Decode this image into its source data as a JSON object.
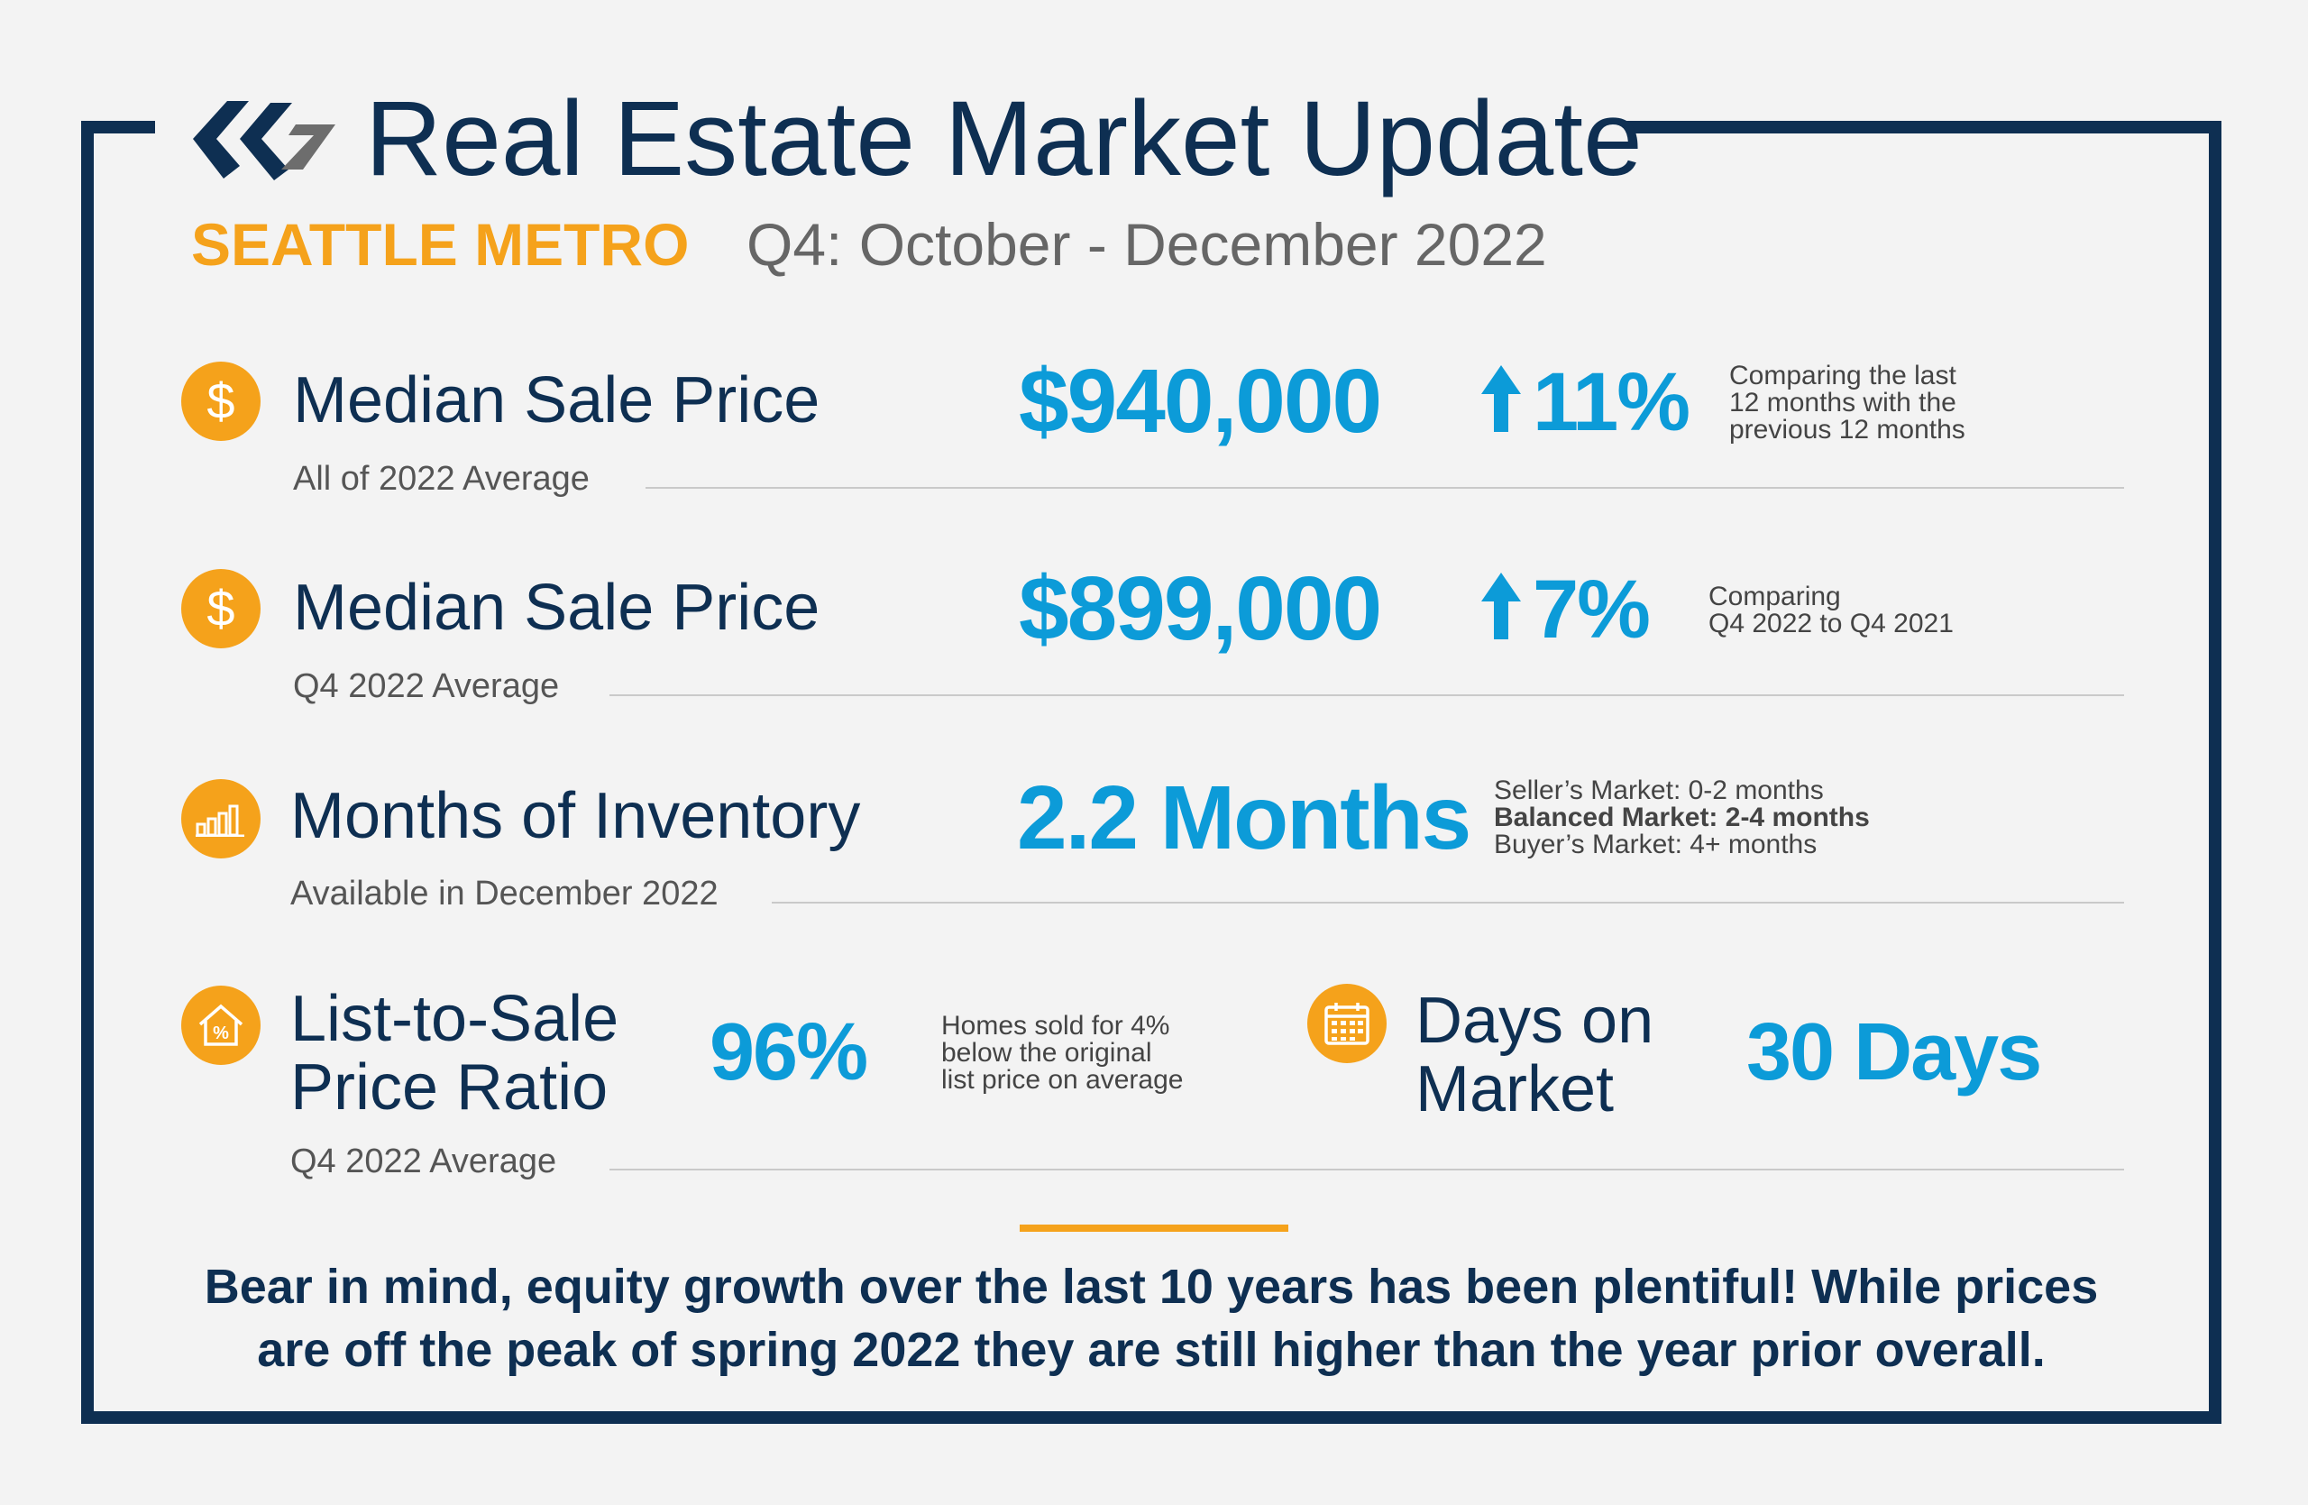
{
  "header": {
    "title": "Real Estate Market Update",
    "region": "SEATTLE METRO",
    "period": "Q4: October - December 2022"
  },
  "metrics": {
    "median_annual": {
      "label": "Median Sale Price",
      "sub": "All of 2022 Average",
      "value": "$940,000",
      "change": "11%",
      "note": [
        "Comparing the last",
        "12 months with the",
        "previous 12 months"
      ]
    },
    "median_q4": {
      "label": "Median Sale Price",
      "sub": "Q4 2022 Average",
      "value": "$899,000",
      "change": "7%",
      "note": [
        "Comparing",
        "Q4 2022 to Q4 2021"
      ]
    },
    "inventory": {
      "label": "Months of Inventory",
      "sub": "Available in December 2022",
      "value": "2.2 Months",
      "note": [
        "Seller’s Market: 0-2 months",
        "Balanced Market: 2-4 months",
        "Buyer’s Market: 4+ months"
      ]
    },
    "list_to_sale": {
      "label_line1": "List-to-Sale",
      "label_line2": "Price Ratio",
      "sub": "Q4 2022 Average",
      "value": "96%",
      "note": [
        "Homes sold for 4%",
        "below the original",
        "list price on average"
      ]
    },
    "days_on_market": {
      "label_line1": "Days on",
      "label_line2": "Market",
      "value": "30 Days"
    }
  },
  "icons": {
    "dollar": "$",
    "colors": {
      "accent": "#f5a21b",
      "navy": "#0e2f52",
      "blue": "#0c9bd8"
    }
  },
  "footer": {
    "line1": "Bear in mind, equity growth over the last 10 years has been plentiful! While prices",
    "line2": "are off the peak of spring 2022 they are still higher than the year prior overall."
  }
}
